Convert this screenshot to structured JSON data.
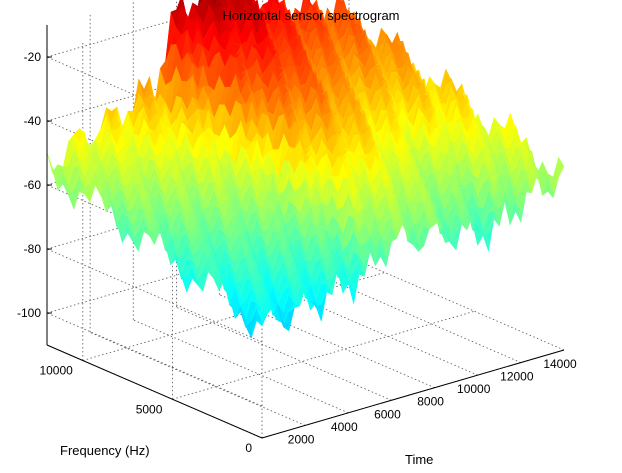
{
  "chart_data": {
    "type": "surface",
    "title": "Horizontal sensor spectrogram",
    "xlabel": "Time",
    "ylabel": "Frequency (Hz)",
    "zlabel": "",
    "x_ticks": [
      "2000",
      "4000",
      "6000",
      "8000",
      "10000",
      "12000",
      "14000"
    ],
    "y_ticks": [
      "0",
      "5000",
      "10000"
    ],
    "z_ticks": [
      "-20",
      "-40",
      "-60",
      "-80",
      "-100"
    ],
    "xlim": [
      0,
      14000
    ],
    "ylim": [
      0,
      12000
    ],
    "zlim": [
      -110,
      -10
    ],
    "grid": true,
    "colormap": "jet",
    "colors": {
      "low": "#1e4fd8",
      "mid_low": "#2ad2c8",
      "mid": "#f0f020",
      "mid_high": "#ff8c00",
      "high": "#d40000"
    },
    "surface_profile": {
      "description_levels": "approximate dB level across time (rows) for the time slices, read from the color/height",
      "time": [
        0,
        1000,
        2000,
        3000,
        4000,
        5000,
        6000,
        7000,
        8000,
        9000,
        10000,
        11000,
        12000,
        13000,
        14000
      ],
      "level_low_freq": [
        -75,
        -74,
        -73,
        -72,
        -70,
        -68,
        -60,
        -62,
        -62,
        -64,
        -66,
        -66,
        -60,
        -58,
        -55
      ],
      "level_high_freq": [
        -55,
        -50,
        -48,
        -45,
        -42,
        -38,
        -18,
        -14,
        -12,
        -18,
        -22,
        -26,
        -28,
        -30,
        -35
      ]
    }
  }
}
